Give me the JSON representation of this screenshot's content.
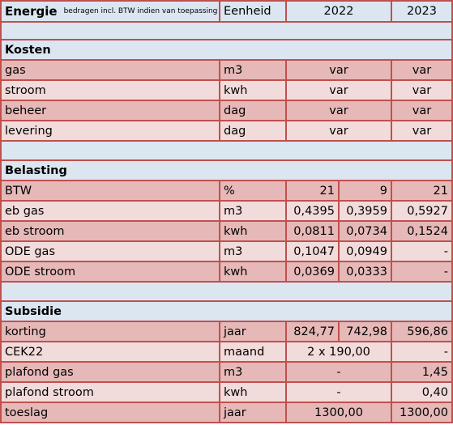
{
  "header": {
    "title": "Energie",
    "note": "bedragen incl. BTW indien van toepassing",
    "col_unit": "Eenheid",
    "col_2022": "2022",
    "col_2023": "2023"
  },
  "sections": {
    "kosten": "Kosten",
    "belasting": "Belasting",
    "subsidie": "Subsidie"
  },
  "kosten_rows": [
    {
      "label": "gas",
      "unit": "m3",
      "v2022": "var",
      "v2023": "var"
    },
    {
      "label": "stroom",
      "unit": "kwh",
      "v2022": "var",
      "v2023": "var"
    },
    {
      "label": "beheer",
      "unit": "dag",
      "v2022": "var",
      "v2023": "var"
    },
    {
      "label": "levering",
      "unit": "dag",
      "v2022": "var",
      "v2023": "var"
    }
  ],
  "belasting_rows": [
    {
      "label": "BTW",
      "unit": "%",
      "a": "21",
      "b": "9",
      "c": "21"
    },
    {
      "label": "eb gas",
      "unit": "m3",
      "a": "0,4395",
      "b": "0,3959",
      "c": "0,5927"
    },
    {
      "label": "eb stroom",
      "unit": "kwh",
      "a": "0,0811",
      "b": "0,0734",
      "c": "0,1524"
    },
    {
      "label": "ODE gas",
      "unit": "m3",
      "a": "0,1047",
      "b": "0,0949",
      "c": "-"
    },
    {
      "label": "ODE stroom",
      "unit": "kwh",
      "a": "0,0369",
      "b": "0,0333",
      "c": "-"
    }
  ],
  "subsidie_rows": {
    "korting": {
      "label": "korting",
      "unit": "jaar",
      "a": "824,77",
      "b": "742,98",
      "c": "596,86"
    },
    "cek22": {
      "label": "CEK22",
      "unit": "maand",
      "merged": "2 x 190,00",
      "c": "-"
    },
    "plafond_gas": {
      "label": "plafond gas",
      "unit": "m3",
      "merged": "-",
      "c": "1,45"
    },
    "plafond_stroom": {
      "label": "plafond stroom",
      "unit": "kwh",
      "merged": "-",
      "c": "0,40"
    },
    "toeslag": {
      "label": "toeslag",
      "unit": "jaar",
      "merged": "1300,00",
      "c": "1300,00"
    }
  }
}
